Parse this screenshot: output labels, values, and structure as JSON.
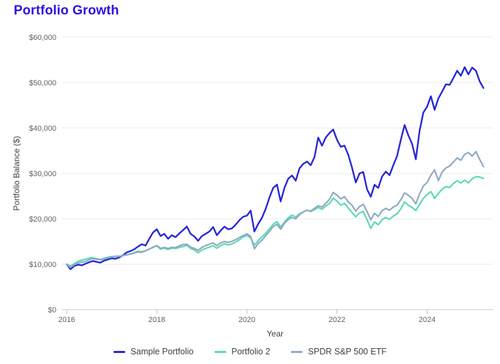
{
  "chart_data": {
    "type": "line",
    "title": "Portfolio Growth",
    "xlabel": "Year",
    "ylabel": "Portfolio Balance ($)",
    "x_start_year": 2016,
    "x_interval_months": 1,
    "x_ticks": [
      2016,
      2018,
      2020,
      2022,
      2024
    ],
    "y_ticks": [
      0,
      10000,
      20000,
      30000,
      40000,
      50000,
      60000
    ],
    "y_tick_labels": [
      "$0",
      "$10,000",
      "$20,000",
      "$30,000",
      "$40,000",
      "$50,000",
      "$60,000"
    ],
    "ylim": [
      0,
      60000
    ],
    "xlim": [
      2015.9,
      2025.5
    ],
    "grid": "horizontal-only",
    "legend_position": "bottom-center",
    "series": [
      {
        "name": "Sample Portfolio",
        "color": "#2626d9",
        "values": [
          10000,
          8900,
          9600,
          9900,
          9750,
          10100,
          10450,
          10700,
          10500,
          10350,
          10800,
          11050,
          11300,
          11200,
          11500,
          12000,
          12600,
          12900,
          13300,
          13900,
          14400,
          14100,
          15600,
          17000,
          17700,
          16200,
          16700,
          15600,
          16400,
          15950,
          16800,
          17500,
          18300,
          16700,
          16100,
          15150,
          16200,
          16700,
          17200,
          18200,
          16400,
          17400,
          18280,
          17700,
          17900,
          18700,
          19700,
          20450,
          20700,
          21800,
          17200,
          18900,
          20200,
          22200,
          24700,
          26800,
          27530,
          23830,
          26800,
          28800,
          29550,
          28400,
          31100,
          32100,
          32600,
          31800,
          33600,
          37900,
          36100,
          37900,
          38900,
          39650,
          37400,
          35860,
          36100,
          34100,
          31300,
          28000,
          30000,
          30300,
          26500,
          24850,
          27500,
          26800,
          29300,
          30400,
          29600,
          31800,
          33800,
          37400,
          40650,
          38400,
          36500,
          33100,
          39400,
          43400,
          44700,
          47000,
          44000,
          46500,
          48000,
          49600,
          49500,
          51000,
          52600,
          51500,
          53400,
          51800,
          53300,
          52600,
          50300,
          48800
        ]
      },
      {
        "name": "Portfolio 2",
        "color": "#57dbb2",
        "values": [
          10000,
          9600,
          10100,
          10600,
          10900,
          11100,
          11350,
          11450,
          11200,
          11050,
          11350,
          11550,
          11700,
          11700,
          11750,
          11900,
          12100,
          12300,
          12550,
          12900,
          12750,
          12950,
          13300,
          13800,
          14000,
          13350,
          13550,
          13250,
          13550,
          13450,
          13700,
          13900,
          14150,
          13450,
          13150,
          12500,
          13100,
          13500,
          13750,
          14100,
          13500,
          14100,
          14500,
          14250,
          14450,
          14900,
          15400,
          16000,
          16300,
          15800,
          14200,
          15200,
          16000,
          16800,
          17800,
          18800,
          19400,
          18200,
          19300,
          20200,
          20800,
          20400,
          21100,
          21500,
          21900,
          21600,
          22000,
          22500,
          22100,
          22800,
          23400,
          24550,
          23900,
          23000,
          23400,
          22400,
          21400,
          20450,
          21300,
          21600,
          19800,
          17900,
          19300,
          18700,
          19800,
          20300,
          19900,
          20600,
          21100,
          22200,
          23700,
          23000,
          22500,
          21800,
          23200,
          24500,
          25300,
          26000,
          24500,
          25600,
          26500,
          27100,
          26900,
          27800,
          28400,
          27900,
          28500,
          27900,
          28800,
          29300,
          29200,
          28900
        ]
      },
      {
        "name": "SPDR S&P 500 ETF",
        "color": "#90a9c2",
        "values": [
          10000,
          9300,
          9900,
          10250,
          10450,
          10600,
          11000,
          11200,
          11100,
          10950,
          11200,
          11400,
          11600,
          11750,
          11750,
          11900,
          12050,
          12250,
          12450,
          12700,
          12600,
          12950,
          13350,
          13700,
          14100,
          13500,
          13700,
          13450,
          13750,
          13650,
          14050,
          14350,
          14400,
          13750,
          13500,
          13030,
          13700,
          14100,
          14400,
          14700,
          14100,
          14700,
          15000,
          14800,
          15050,
          15400,
          15900,
          16300,
          16700,
          16100,
          13400,
          14600,
          15300,
          16300,
          17200,
          18300,
          18800,
          17700,
          19000,
          19800,
          20300,
          20000,
          20900,
          21500,
          21900,
          21700,
          22300,
          22900,
          22600,
          23400,
          24300,
          25800,
          25200,
          24400,
          24900,
          23700,
          23000,
          21700,
          22700,
          23200,
          21600,
          19800,
          21200,
          20500,
          21800,
          22300,
          21900,
          22600,
          23000,
          24200,
          25700,
          25200,
          24500,
          23300,
          25500,
          27200,
          28000,
          29600,
          30800,
          28400,
          30300,
          31200,
          31600,
          32500,
          33400,
          32900,
          34200,
          34600,
          33800,
          34800,
          33100,
          31500
        ]
      }
    ]
  },
  "colors": {
    "title": "#2b10e3",
    "gridline": "#e8e8e8",
    "axis_line": "#c9c9c9",
    "tick_mark": "#bdbdbd",
    "tick_text": "#616161",
    "axis_title_text": "#3c4043"
  }
}
